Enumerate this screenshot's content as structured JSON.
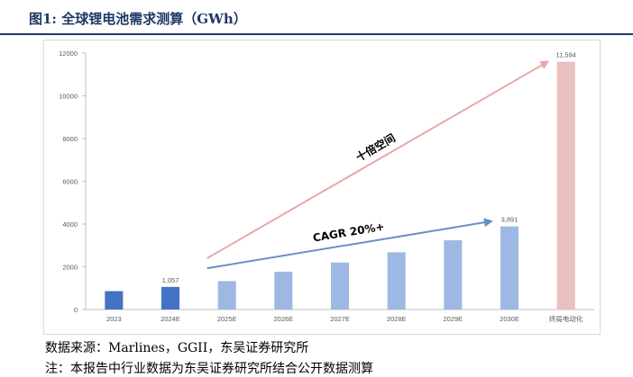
{
  "figure": {
    "title": "图1:  全球锂电池需求测算（GWh）",
    "source": "数据来源：Marlines，GGII，东吴证券研究所",
    "note": "注：本报告中行业数据为东吴证券研究所结合公开数据测算"
  },
  "chart_data": {
    "type": "bar",
    "categories": [
      "2023",
      "2024E",
      "2025E",
      "2026E",
      "2027E",
      "2028E",
      "2029E",
      "2030E",
      "终局电动化"
    ],
    "values": [
      860,
      1057,
      1330,
      1770,
      2200,
      2680,
      3240,
      3891,
      11594
    ],
    "data_labels": {
      "1": "1,057",
      "7": "3,891",
      "8": "11,594"
    },
    "ylim": [
      0,
      12000
    ],
    "yticks": [
      0,
      2000,
      4000,
      6000,
      8000,
      10000,
      12000
    ],
    "grid": false,
    "bar_colors": [
      "#4472c4",
      "#4472c4",
      "#9db9e3",
      "#9db9e3",
      "#9db9e3",
      "#9db9e3",
      "#9db9e3",
      "#9db9e3",
      "#e9bfc0"
    ],
    "annotations": [
      {
        "text": "十倍空间",
        "color": "#e8a9a9",
        "from": {
          "category": "2025E",
          "value": 2400
        },
        "to": {
          "category": "终局电动化",
          "value": 11600
        }
      },
      {
        "text": "CAGR 20%+",
        "color": "#6a8fc4",
        "from": {
          "category": "2025E",
          "value": 1930
        },
        "to": {
          "category": "2030E",
          "value": 4130
        }
      }
    ]
  }
}
